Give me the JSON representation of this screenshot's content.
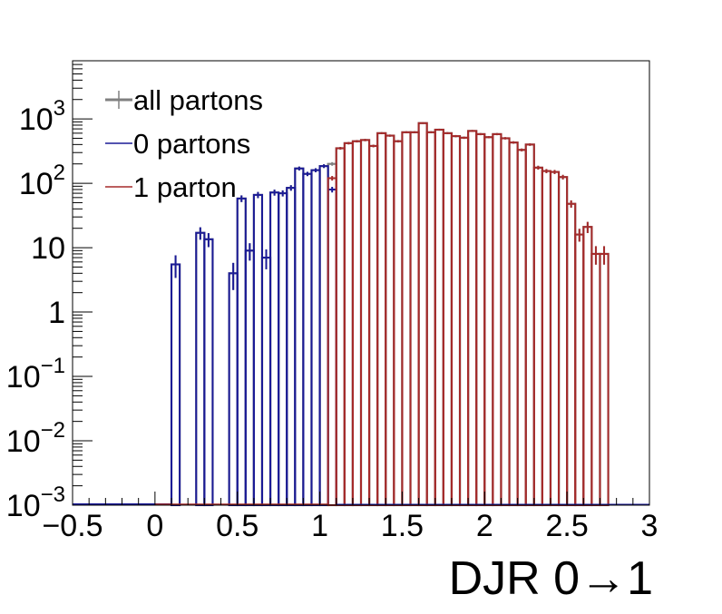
{
  "chart_data": {
    "type": "histogram",
    "title": "",
    "xlabel": "DJR 0→1",
    "ylabel": "",
    "xlim": [
      -0.5,
      3.0
    ],
    "ylim": [
      0.001,
      8000
    ],
    "yscale": "log",
    "grid": false,
    "legend_position": "top-left",
    "bin_width": 0.05,
    "x_ticks": [
      {
        "value": -0.5,
        "label": "−0.5"
      },
      {
        "value": 0,
        "label": "0"
      },
      {
        "value": 0.5,
        "label": "0.5"
      },
      {
        "value": 1,
        "label": "1"
      },
      {
        "value": 1.5,
        "label": "1.5"
      },
      {
        "value": 2,
        "label": "2"
      },
      {
        "value": 2.5,
        "label": "2.5"
      },
      {
        "value": 3,
        "label": "3"
      }
    ],
    "y_ticks": [
      {
        "value": 0.001,
        "base": "10",
        "exp": "−3"
      },
      {
        "value": 0.01,
        "base": "10",
        "exp": "−2"
      },
      {
        "value": 0.1,
        "base": "10",
        "exp": "−1"
      },
      {
        "value": 1,
        "base": "1",
        "exp": ""
      },
      {
        "value": 10,
        "base": "10",
        "exp": ""
      },
      {
        "value": 100,
        "base": "10",
        "exp": "2"
      },
      {
        "value": 1000,
        "base": "10",
        "exp": "3"
      }
    ],
    "series": [
      {
        "name": "all partons",
        "color": "#808080",
        "style": "step-with-errors",
        "bins": [
          [
            0.1,
            0.15,
            5.5
          ],
          [
            0.15,
            0.2,
            0
          ],
          [
            0.2,
            0.25,
            0
          ],
          [
            0.25,
            0.3,
            17
          ],
          [
            0.3,
            0.35,
            13.5
          ],
          [
            0.35,
            0.4,
            0
          ],
          [
            0.4,
            0.45,
            0
          ],
          [
            0.45,
            0.5,
            4
          ],
          [
            0.5,
            0.55,
            58
          ],
          [
            0.55,
            0.6,
            9
          ],
          [
            0.6,
            0.65,
            66
          ],
          [
            0.65,
            0.7,
            7
          ],
          [
            0.7,
            0.75,
            72
          ],
          [
            0.75,
            0.8,
            70
          ],
          [
            0.8,
            0.85,
            85
          ],
          [
            0.85,
            0.9,
            170
          ],
          [
            0.9,
            0.95,
            140
          ],
          [
            0.95,
            1.0,
            160
          ],
          [
            1.0,
            1.05,
            185
          ],
          [
            1.05,
            1.1,
            200
          ],
          [
            1.1,
            1.15,
            350
          ],
          [
            1.15,
            1.2,
            420
          ],
          [
            1.2,
            1.25,
            450
          ],
          [
            1.25,
            1.3,
            470
          ],
          [
            1.3,
            1.35,
            380
          ],
          [
            1.35,
            1.4,
            600
          ],
          [
            1.4,
            1.45,
            550
          ],
          [
            1.45,
            1.5,
            450
          ],
          [
            1.5,
            1.55,
            620
          ],
          [
            1.55,
            1.6,
            620
          ],
          [
            1.6,
            1.65,
            860
          ],
          [
            1.65,
            1.7,
            620
          ],
          [
            1.7,
            1.75,
            680
          ],
          [
            1.75,
            1.8,
            600
          ],
          [
            1.8,
            1.85,
            540
          ],
          [
            1.85,
            1.9,
            510
          ],
          [
            1.9,
            1.95,
            650
          ],
          [
            1.95,
            2.0,
            580
          ],
          [
            2.0,
            2.05,
            520
          ],
          [
            2.05,
            2.1,
            580
          ],
          [
            2.1,
            2.15,
            500
          ],
          [
            2.15,
            2.2,
            430
          ],
          [
            2.2,
            2.25,
            330
          ],
          [
            2.25,
            2.3,
            400
          ],
          [
            2.3,
            2.35,
            175
          ],
          [
            2.35,
            2.4,
            155
          ],
          [
            2.4,
            2.45,
            150
          ],
          [
            2.45,
            2.5,
            125
          ],
          [
            2.5,
            2.55,
            48
          ],
          [
            2.55,
            2.6,
            16
          ],
          [
            2.6,
            2.65,
            21
          ],
          [
            2.65,
            2.7,
            8
          ],
          [
            2.7,
            2.75,
            8
          ]
        ]
      },
      {
        "name": "0 partons",
        "color": "#1a1a96",
        "style": "step-with-errors",
        "bins": [
          [
            0.1,
            0.15,
            5.5
          ],
          [
            0.15,
            0.2,
            0
          ],
          [
            0.2,
            0.25,
            0
          ],
          [
            0.25,
            0.3,
            17
          ],
          [
            0.3,
            0.35,
            13.5
          ],
          [
            0.35,
            0.4,
            0
          ],
          [
            0.4,
            0.45,
            0
          ],
          [
            0.45,
            0.5,
            4
          ],
          [
            0.5,
            0.55,
            58
          ],
          [
            0.55,
            0.6,
            9
          ],
          [
            0.6,
            0.65,
            66
          ],
          [
            0.65,
            0.7,
            7
          ],
          [
            0.7,
            0.75,
            72
          ],
          [
            0.75,
            0.8,
            70
          ],
          [
            0.8,
            0.85,
            85
          ],
          [
            0.85,
            0.9,
            170
          ],
          [
            0.9,
            0.95,
            140
          ],
          [
            0.95,
            1.0,
            160
          ],
          [
            1.0,
            1.05,
            185
          ],
          [
            1.05,
            1.1,
            80
          ]
        ]
      },
      {
        "name": "1 parton",
        "color": "#a52a2a",
        "style": "step-with-errors",
        "bins": [
          [
            1.05,
            1.1,
            120
          ],
          [
            1.1,
            1.15,
            350
          ],
          [
            1.15,
            1.2,
            420
          ],
          [
            1.2,
            1.25,
            450
          ],
          [
            1.25,
            1.3,
            470
          ],
          [
            1.3,
            1.35,
            380
          ],
          [
            1.35,
            1.4,
            600
          ],
          [
            1.4,
            1.45,
            550
          ],
          [
            1.45,
            1.5,
            450
          ],
          [
            1.5,
            1.55,
            620
          ],
          [
            1.55,
            1.6,
            620
          ],
          [
            1.6,
            1.65,
            860
          ],
          [
            1.65,
            1.7,
            620
          ],
          [
            1.7,
            1.75,
            680
          ],
          [
            1.75,
            1.8,
            600
          ],
          [
            1.8,
            1.85,
            540
          ],
          [
            1.85,
            1.9,
            510
          ],
          [
            1.9,
            1.95,
            650
          ],
          [
            1.95,
            2.0,
            580
          ],
          [
            2.0,
            2.05,
            520
          ],
          [
            2.05,
            2.1,
            580
          ],
          [
            2.1,
            2.15,
            500
          ],
          [
            2.15,
            2.2,
            430
          ],
          [
            2.2,
            2.25,
            330
          ],
          [
            2.25,
            2.3,
            400
          ],
          [
            2.3,
            2.35,
            175
          ],
          [
            2.35,
            2.4,
            155
          ],
          [
            2.4,
            2.45,
            150
          ],
          [
            2.45,
            2.5,
            125
          ],
          [
            2.5,
            2.55,
            48
          ],
          [
            2.55,
            2.6,
            16
          ],
          [
            2.6,
            2.65,
            21
          ],
          [
            2.65,
            2.7,
            8
          ],
          [
            2.7,
            2.75,
            8
          ]
        ]
      }
    ]
  }
}
